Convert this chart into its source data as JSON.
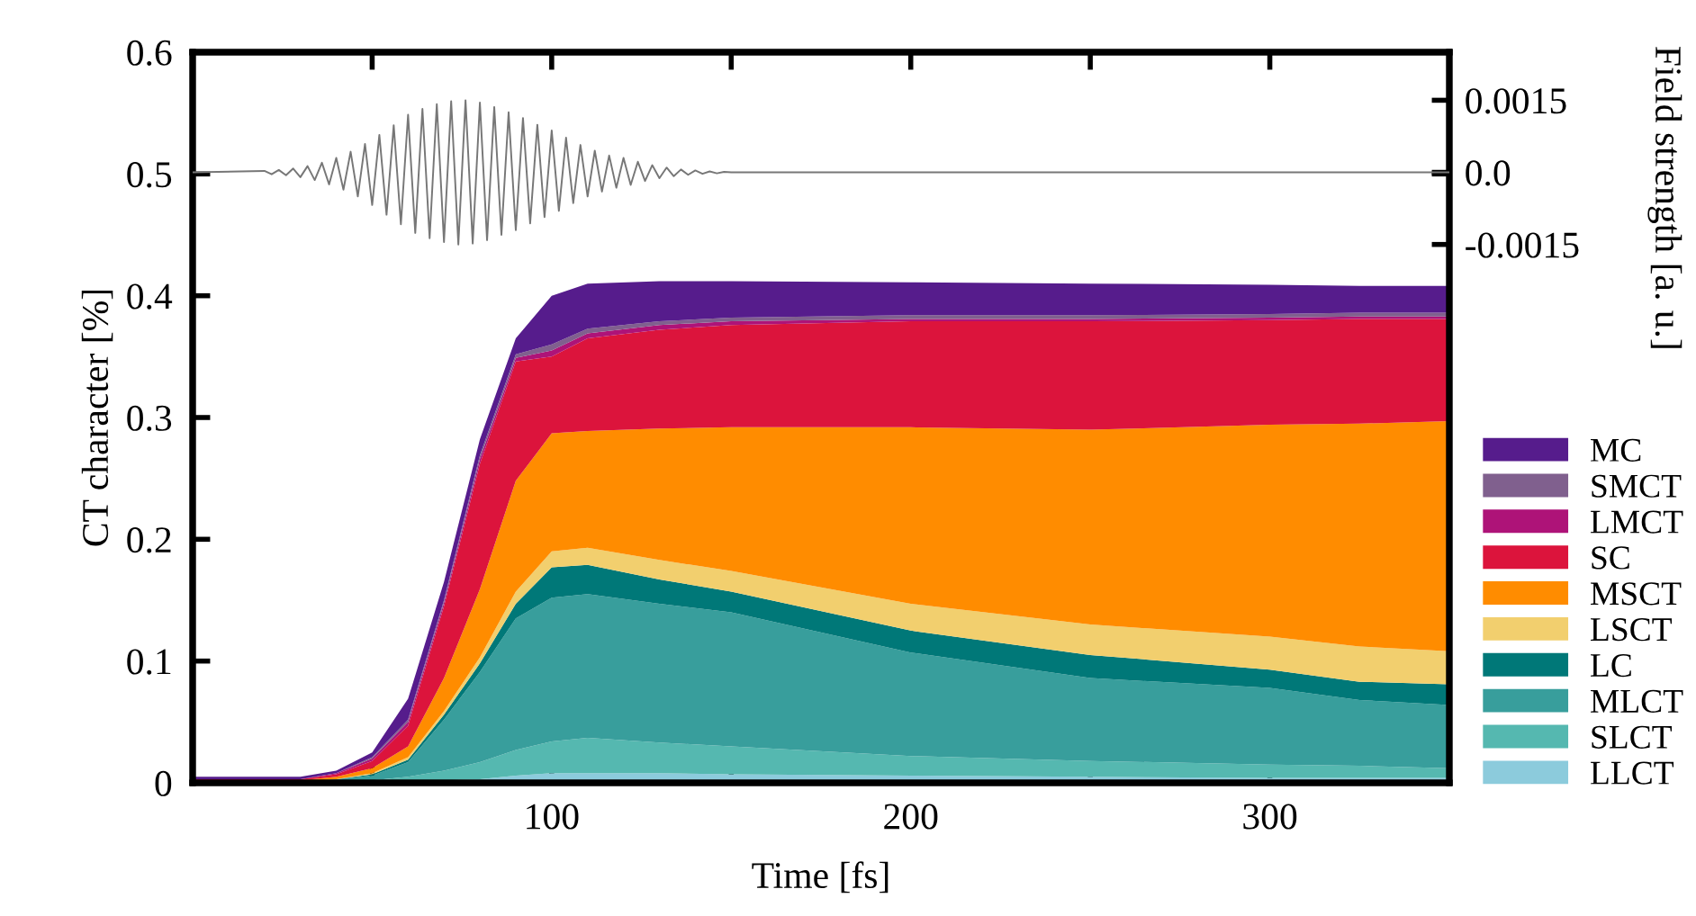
{
  "chart_data": {
    "type": "area",
    "stacked": true,
    "xlabel": "Time [fs]",
    "ylabel": "CT character [%]",
    "y2label": "Field strength [a. u.]",
    "x": [
      0,
      30,
      40,
      50,
      60,
      70,
      80,
      90,
      100,
      110,
      130,
      150,
      200,
      250,
      300,
      325,
      350
    ],
    "xlim": [
      0,
      350
    ],
    "xticks": [
      {
        "value": 50,
        "label": null
      },
      100,
      {
        "value": 150,
        "label": null
      },
      200,
      {
        "value": 250,
        "label": null
      },
      300
    ],
    "ylim": [
      0,
      0.6
    ],
    "yticks": [
      0,
      0.1,
      0.2,
      0.3,
      0.4,
      0.5,
      0.6
    ],
    "y2lim": [
      -0.0127,
      0.0025
    ],
    "y2ticks": [
      -0.0015,
      {
        "value": 0,
        "label": "0.0"
      },
      0.0015
    ],
    "grid": false,
    "legend": "right",
    "series": [
      {
        "name": "LLCT",
        "color": "#8ccbdc",
        "values": [
          0,
          0,
          0,
          0,
          0.001,
          0.002,
          0.003,
          0.006,
          0.008,
          0.008,
          0.008,
          0.007,
          0.006,
          0.005,
          0.004,
          0.004,
          0.004
        ]
      },
      {
        "name": "SLCT",
        "color": "#55b8b0",
        "values": [
          0,
          0,
          0.001,
          0.002,
          0.004,
          0.008,
          0.014,
          0.021,
          0.026,
          0.029,
          0.025,
          0.023,
          0.016,
          0.013,
          0.011,
          0.01,
          0.008
        ]
      },
      {
        "name": "MLCT",
        "color": "#389e9c",
        "values": [
          0.001,
          0.001,
          0.002,
          0.004,
          0.012,
          0.042,
          0.074,
          0.108,
          0.118,
          0.118,
          0.114,
          0.11,
          0.085,
          0.068,
          0.063,
          0.054,
          0.052
        ]
      },
      {
        "name": "LC",
        "color": "#007878",
        "values": [
          0,
          0,
          0,
          0.001,
          0.002,
          0.004,
          0.007,
          0.012,
          0.025,
          0.024,
          0.02,
          0.017,
          0.018,
          0.019,
          0.015,
          0.015,
          0.017
        ]
      },
      {
        "name": "LSCT",
        "color": "#f2cf6e",
        "values": [
          0,
          0,
          0,
          0.001,
          0.002,
          0.003,
          0.005,
          0.01,
          0.013,
          0.014,
          0.016,
          0.017,
          0.022,
          0.025,
          0.027,
          0.029,
          0.027
        ]
      },
      {
        "name": "MSCT",
        "color": "#ff8c00",
        "values": [
          0.001,
          0.001,
          0.002,
          0.004,
          0.009,
          0.027,
          0.056,
          0.091,
          0.097,
          0.096,
          0.108,
          0.118,
          0.145,
          0.16,
          0.174,
          0.183,
          0.189
        ]
      },
      {
        "name": "SC",
        "color": "#dc143c",
        "values": [
          0.001,
          0.001,
          0.002,
          0.006,
          0.017,
          0.059,
          0.103,
          0.098,
          0.063,
          0.076,
          0.081,
          0.084,
          0.087,
          0.089,
          0.086,
          0.086,
          0.084
        ]
      },
      {
        "name": "LMCT",
        "color": "#ae1378",
        "values": [
          0,
          0,
          0.001,
          0.002,
          0.003,
          0.003,
          0.004,
          0.003,
          0.005,
          0.004,
          0.004,
          0.003,
          0.002,
          0.002,
          0.002,
          0.002,
          0.002
        ]
      },
      {
        "name": "SMCT",
        "color": "#80608e",
        "values": [
          0,
          0,
          0,
          0.001,
          0.002,
          0.002,
          0.003,
          0.003,
          0.005,
          0.004,
          0.003,
          0.003,
          0.003,
          0.003,
          0.003,
          0.003,
          0.003
        ]
      },
      {
        "name": "MC",
        "color": "#561c8c",
        "values": [
          0.002,
          0.002,
          0.002,
          0.004,
          0.017,
          0.015,
          0.013,
          0.013,
          0.04,
          0.037,
          0.033,
          0.03,
          0.027,
          0.026,
          0.024,
          0.022,
          0.022
        ]
      },
      {
        "type": "line",
        "axis": "y2",
        "color": "#777777",
        "x": [
          0,
          20,
          22,
          24,
          26,
          28,
          30,
          32,
          34,
          36,
          38,
          40,
          42,
          44,
          46,
          48,
          50,
          52,
          54,
          56,
          58,
          60,
          62,
          64,
          66,
          68,
          70,
          72,
          74,
          76,
          78,
          80,
          82,
          84,
          86,
          88,
          90,
          92,
          94,
          96,
          98,
          100,
          102,
          104,
          106,
          108,
          110,
          112,
          114,
          116,
          118,
          120,
          122,
          124,
          126,
          128,
          130,
          132,
          134,
          136,
          138,
          140,
          142,
          144,
          146,
          148,
          150,
          350
        ],
        "values": [
          0,
          3e-05,
          -4e-05,
          5e-05,
          -6e-05,
          8e-05,
          -0.0001,
          0.00013,
          -0.00016,
          0.0002,
          -0.00025,
          0.0003,
          -0.00036,
          0.00043,
          -0.0005,
          0.00059,
          -0.00068,
          0.00078,
          -0.00088,
          0.00098,
          -0.00108,
          0.0012,
          -0.00126,
          0.00132,
          -0.00137,
          0.00142,
          -0.00145,
          0.00148,
          -0.0015,
          0.0015,
          -0.00148,
          0.00145,
          -0.00141,
          0.00136,
          -0.0013,
          0.00125,
          -0.0012,
          0.00113,
          -0.00106,
          0.00099,
          -0.00093,
          0.00087,
          -0.0008,
          0.00072,
          -0.00064,
          0.00057,
          -0.0005,
          0.00045,
          -0.0004,
          0.00035,
          -0.00032,
          0.0003,
          -0.00026,
          0.00022,
          -0.00018,
          0.00015,
          -0.00012,
          0.0001,
          -8e-05,
          6e-05,
          -5e-05,
          4e-05,
          -3e-05,
          2e-05,
          -2e-05,
          1e-05,
          0,
          0
        ]
      }
    ]
  }
}
